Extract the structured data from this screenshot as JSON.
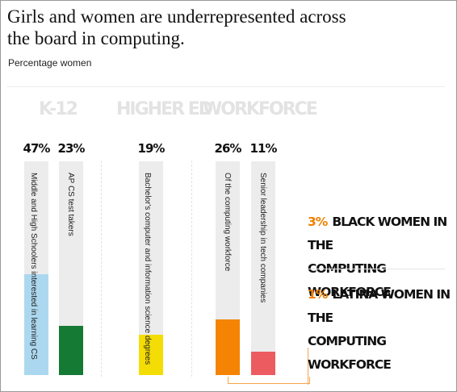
{
  "title": "Girls and women are underrepresented across the board in computing.",
  "subtitle": "Percentage women",
  "chart_data": {
    "type": "bar",
    "sections": [
      "K-12",
      "HIGHER ED",
      "WORKFORCE"
    ],
    "bars": [
      {
        "section": "K-12",
        "label": "Middle and High Schoolers interested in learning CS",
        "value": 47,
        "value_label": "47%",
        "color": "#acd8ef"
      },
      {
        "section": "K-12",
        "label": "AP CS test takers",
        "value": 23,
        "value_label": "23%",
        "color": "#157b34"
      },
      {
        "section": "HIGHER ED",
        "label": "Bachelor's computer and information science degrees",
        "value": 19,
        "value_label": "19%",
        "color": "#f4dc05"
      },
      {
        "section": "WORKFORCE",
        "label": "Of the computing workforce",
        "value": 26,
        "value_label": "26%",
        "color": "#f58405"
      },
      {
        "section": "WORKFORCE",
        "label": "Senior leadership in tech companies",
        "value": 11,
        "value_label": "11%",
        "color": "#eb5b60"
      }
    ],
    "ylim": [
      0,
      100
    ]
  },
  "callouts": [
    {
      "value_label": "3%",
      "line1": "BLACK WOMEN IN THE",
      "line2": "COMPUTING WORKFORCE"
    },
    {
      "value_label": "1%",
      "line1": "LATINA WOMEN IN THE",
      "line2": "COMPUTING WORKFORCE"
    }
  ],
  "colors": {
    "accent": "#f08000",
    "track": "#ececec",
    "section_heading": "#e3e3e3"
  }
}
